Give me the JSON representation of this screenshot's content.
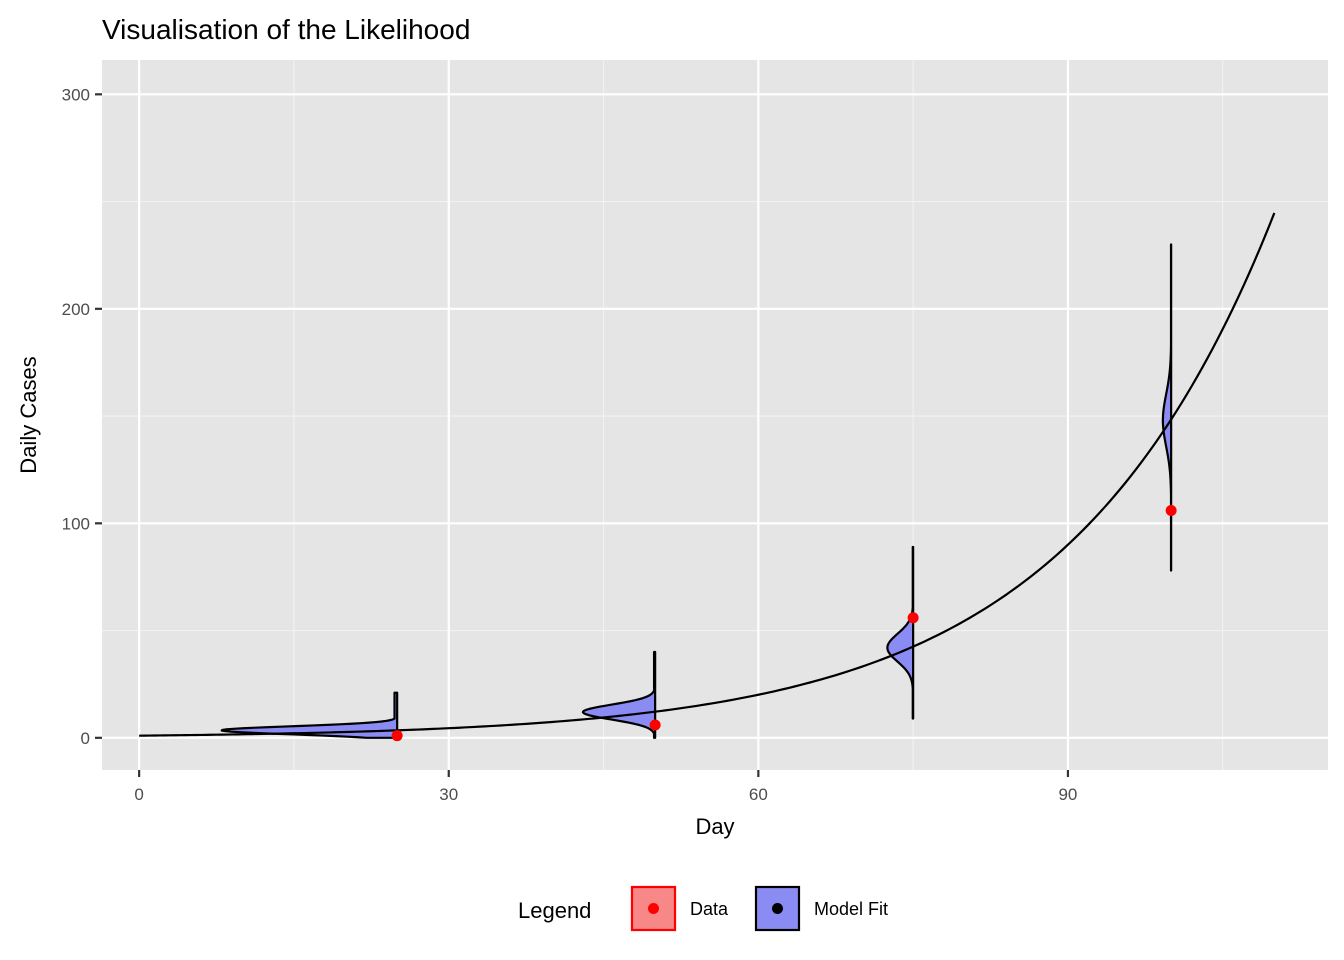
{
  "chart_data": {
    "type": "line",
    "title": "Visualisation of the Likelihood",
    "xlabel": "Day",
    "ylabel": "Daily Cases",
    "xlim": [
      -3.6,
      115.2
    ],
    "ylim": [
      -15,
      316
    ],
    "x_ticks": [
      0,
      30,
      60,
      90
    ],
    "y_ticks": [
      0,
      100,
      200,
      300
    ],
    "x_tick_labels": [
      "0",
      "30",
      "60",
      "90"
    ],
    "y_tick_labels": [
      "0",
      "100",
      "200",
      "300"
    ],
    "grid": true,
    "background": "#e5e5e5",
    "curve": {
      "name": "Model Fit",
      "x_start": 0,
      "x_end": 110,
      "y0": 1,
      "growth_rate": 0.05,
      "color": "#000000"
    },
    "observations": {
      "name": "Data",
      "color": "#ff0000",
      "x": [
        25,
        50,
        75,
        100
      ],
      "y": [
        1,
        6,
        56,
        106
      ]
    },
    "likelihood_distributions": {
      "fill": "#8b8bf4",
      "stroke": "#000000",
      "series": [
        {
          "x": 25,
          "mean": 3.5,
          "ymin": 0,
          "ymax": 21,
          "width_days": 17
        },
        {
          "x": 50,
          "mean": 12,
          "ymin": 0,
          "ymax": 40,
          "width_days": 7
        },
        {
          "x": 75,
          "mean": 42,
          "ymin": 9,
          "ymax": 89,
          "width_days": 2.5
        },
        {
          "x": 100,
          "mean": 148,
          "ymin": 78,
          "ymax": 230,
          "width_days": 0.8
        }
      ]
    },
    "legend": {
      "title": "Legend",
      "placement": "bottom",
      "entries": [
        {
          "label": "Data",
          "fill": "#f88787",
          "border": "#ff0000",
          "dot": "#ff0000"
        },
        {
          "label": "Model Fit",
          "fill": "#8b8bf4",
          "border": "#000000",
          "dot": "#000000"
        }
      ]
    }
  }
}
